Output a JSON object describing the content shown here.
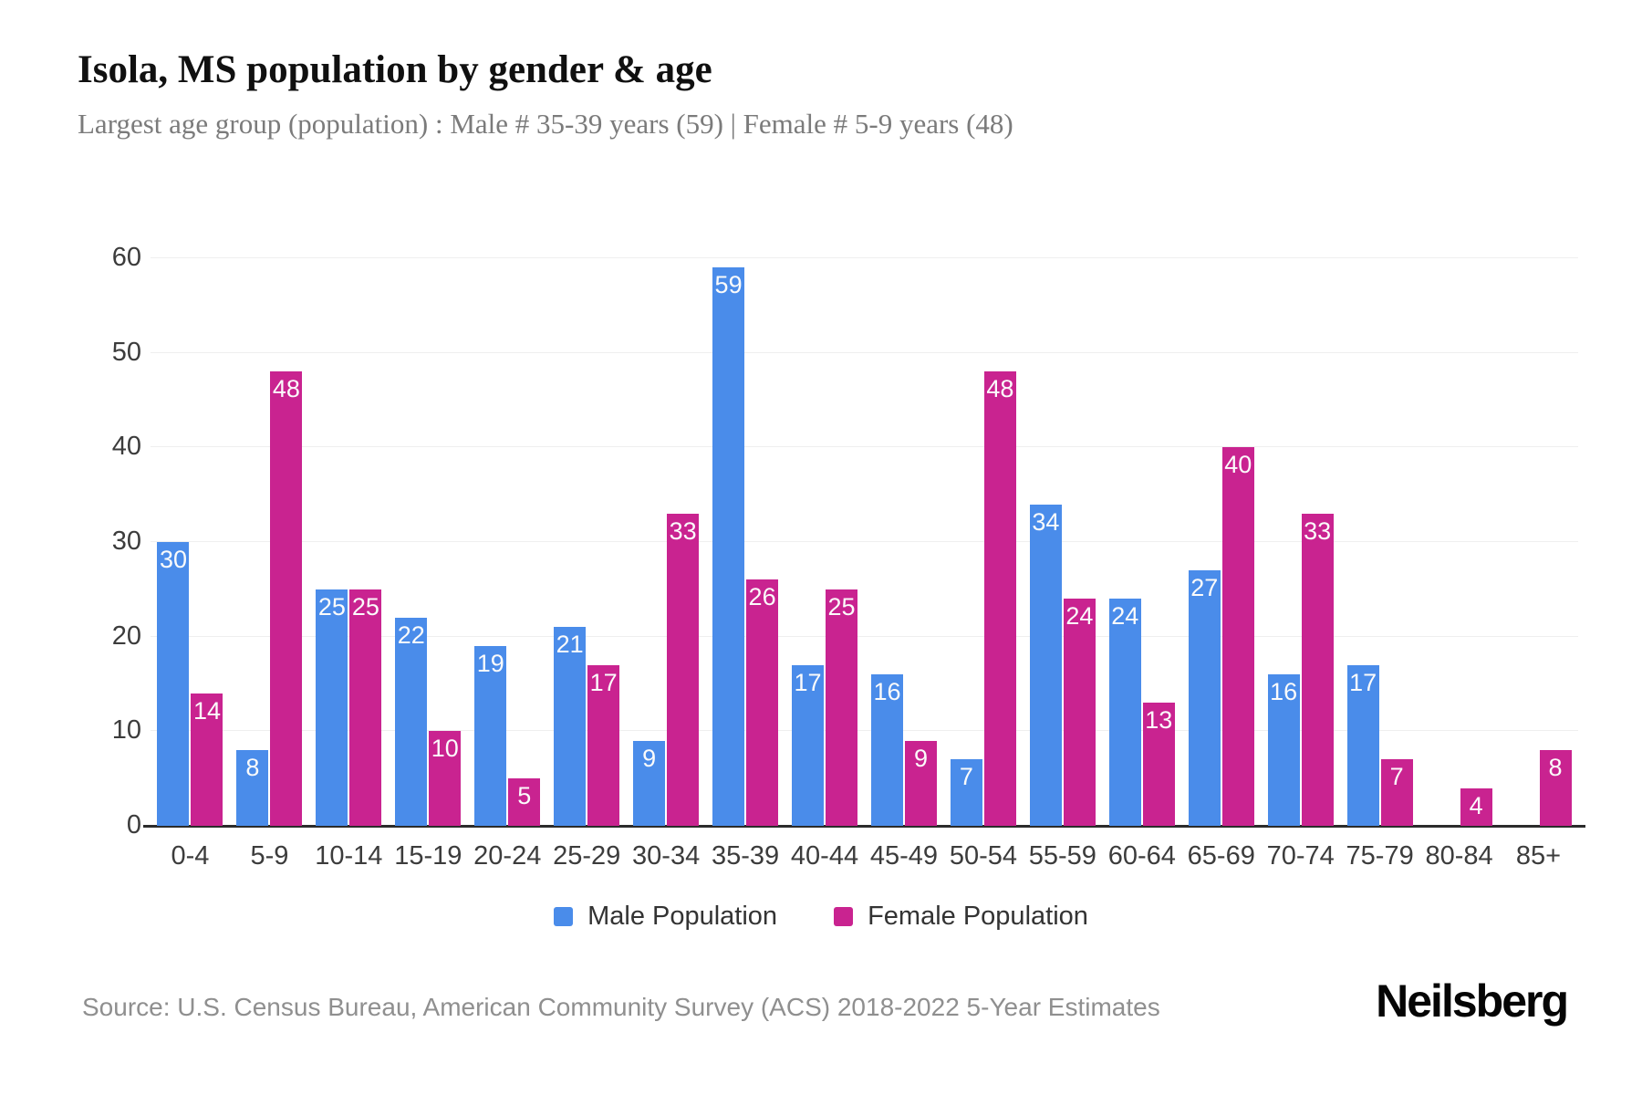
{
  "header": {
    "title": "Isola, MS population by gender & age",
    "subtitle": "Largest age group (population) : Male # 35-39 years (59) | Female # 5-9 years (48)"
  },
  "chart_data": {
    "type": "bar",
    "title": "Isola, MS population by gender & age",
    "xlabel": "",
    "ylabel": "",
    "categories": [
      "0-4",
      "5-9",
      "10-14",
      "15-19",
      "20-24",
      "25-29",
      "30-34",
      "35-39",
      "40-44",
      "45-49",
      "50-54",
      "55-59",
      "60-64",
      "65-69",
      "70-74",
      "75-79",
      "80-84",
      "85+"
    ],
    "series": [
      {
        "name": "Male Population",
        "color": "#4a8cea",
        "values": [
          30,
          8,
          25,
          22,
          19,
          21,
          9,
          59,
          17,
          16,
          7,
          34,
          24,
          27,
          16,
          17,
          0,
          0
        ]
      },
      {
        "name": "Female Population",
        "color": "#c92390",
        "values": [
          14,
          48,
          25,
          10,
          5,
          17,
          33,
          26,
          25,
          9,
          48,
          24,
          13,
          40,
          33,
          7,
          4,
          8
        ]
      }
    ],
    "ylim": [
      0,
      60
    ],
    "yticks": [
      0,
      10,
      20,
      30,
      40,
      50,
      60
    ],
    "grid": true,
    "bar_value_labels": true,
    "legend_position": "bottom"
  },
  "legend": {
    "items": [
      {
        "label": "Male Population",
        "color": "#4a8cea"
      },
      {
        "label": "Female Population",
        "color": "#c92390"
      }
    ]
  },
  "footer": {
    "source": "Source: U.S. Census Bureau, American Community Survey (ACS) 2018-2022 5-Year Estimates",
    "brand": "Neilsberg"
  },
  "colors": {
    "male": "#4a8cea",
    "female": "#c92390",
    "gridline": "#efefef",
    "axis": "#2b2b2b",
    "title": "#101010",
    "subtitle": "#7b7b7b",
    "source": "#8f8f8f"
  }
}
